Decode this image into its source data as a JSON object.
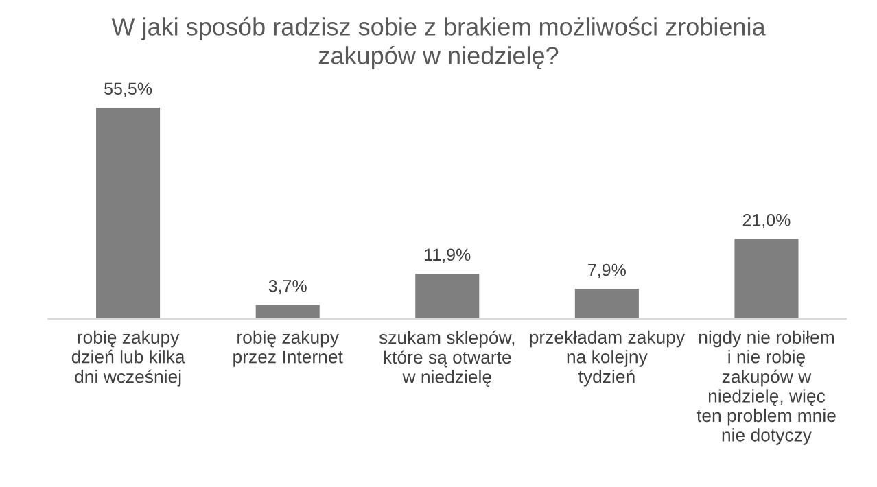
{
  "chart_data": {
    "type": "bar",
    "title": "W jaki sposób radzisz sobie z brakiem możliwości zrobienia zakupów w niedzielę?",
    "categories": [
      "robię zakupy dzień lub kilka dni wcześniej",
      "robię zakupy przez Internet",
      "szukam sklepów, które są otwarte w niedzielę",
      "przekładam zakupy na kolejny tydzień",
      "nigdy nie robiłem i nie robię zakupów w niedzielę, więc ten problem mnie nie dotyczy"
    ],
    "values": [
      55.5,
      3.7,
      11.9,
      7.9,
      21.0
    ],
    "value_labels": [
      "55,5%",
      "3,7%",
      "11,9%",
      "7,9%",
      "21,0%"
    ],
    "color": "#7f7f7f",
    "grid": false,
    "legend": false
  }
}
